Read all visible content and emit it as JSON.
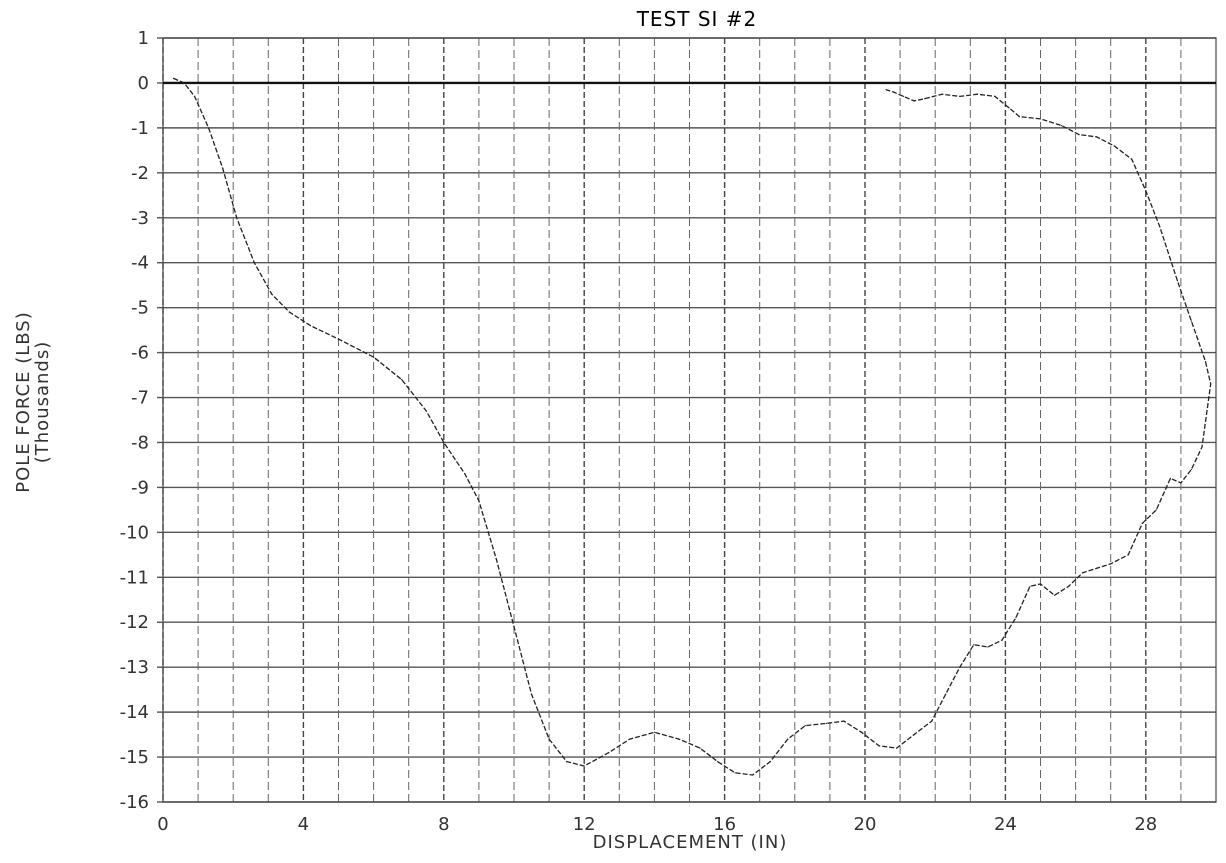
{
  "chart_data": {
    "type": "line",
    "title": "TEST SI #2",
    "xlabel": "DISPLACEMENT (IN)",
    "ylabel": "POLE FORCE (LBS)",
    "ylabel_sub": "(Thousands)",
    "xlim": [
      0,
      30
    ],
    "ylim": [
      -16,
      1
    ],
    "grid": true,
    "x_ticks": [
      0,
      4,
      8,
      12,
      16,
      20,
      24,
      28
    ],
    "x_tick_labels": [
      "0",
      "4",
      "8",
      "12",
      "16",
      "20",
      "24",
      "28"
    ],
    "y_ticks": [
      1,
      0,
      -1,
      -2,
      -3,
      -4,
      -5,
      -6,
      -7,
      -8,
      -9,
      -10,
      -11,
      -12,
      -13,
      -14,
      -15,
      -16
    ],
    "y_tick_labels": [
      "1",
      "0",
      "-1",
      "-2",
      "-3",
      "-4",
      "-5",
      "-6",
      "-7",
      "-8",
      "-9",
      "-10",
      "-11",
      "-12",
      "-13",
      "-14",
      "-15",
      "-16"
    ],
    "series": [
      {
        "style": "dashed",
        "color": "#222222",
        "points": [
          [
            0.3,
            0.1
          ],
          [
            0.6,
            0.0
          ],
          [
            0.9,
            -0.3
          ],
          [
            1.3,
            -1.0
          ],
          [
            1.7,
            -1.9
          ],
          [
            2.1,
            -3.0
          ],
          [
            2.6,
            -4.0
          ],
          [
            3.1,
            -4.7
          ],
          [
            3.6,
            -5.1
          ],
          [
            4.2,
            -5.4
          ],
          [
            5.0,
            -5.7
          ],
          [
            6.0,
            -6.1
          ],
          [
            6.8,
            -6.6
          ],
          [
            7.5,
            -7.3
          ],
          [
            8.0,
            -8.0
          ],
          [
            8.6,
            -8.7
          ],
          [
            9.0,
            -9.3
          ],
          [
            9.5,
            -10.6
          ],
          [
            10.0,
            -12.1
          ],
          [
            10.5,
            -13.6
          ],
          [
            11.0,
            -14.6
          ],
          [
            11.5,
            -15.1
          ],
          [
            12.0,
            -15.2
          ],
          [
            12.7,
            -14.9
          ],
          [
            13.3,
            -14.6
          ],
          [
            14.0,
            -14.45
          ],
          [
            14.7,
            -14.6
          ],
          [
            15.3,
            -14.8
          ],
          [
            15.8,
            -15.1
          ],
          [
            16.3,
            -15.35
          ],
          [
            16.8,
            -15.4
          ],
          [
            17.3,
            -15.1
          ],
          [
            17.8,
            -14.6
          ],
          [
            18.3,
            -14.3
          ],
          [
            18.9,
            -14.25
          ],
          [
            19.4,
            -14.2
          ],
          [
            19.9,
            -14.45
          ],
          [
            20.4,
            -14.75
          ],
          [
            20.9,
            -14.8
          ],
          [
            21.4,
            -14.5
          ],
          [
            21.9,
            -14.2
          ],
          [
            22.3,
            -13.6
          ],
          [
            22.7,
            -13.0
          ],
          [
            23.1,
            -12.5
          ],
          [
            23.5,
            -12.55
          ],
          [
            23.9,
            -12.4
          ],
          [
            24.3,
            -11.9
          ],
          [
            24.7,
            -11.2
          ],
          [
            25.0,
            -11.15
          ],
          [
            25.4,
            -11.4
          ],
          [
            25.8,
            -11.2
          ],
          [
            26.2,
            -10.9
          ],
          [
            26.6,
            -10.8
          ],
          [
            27.0,
            -10.7
          ],
          [
            27.5,
            -10.5
          ],
          [
            27.9,
            -9.8
          ],
          [
            28.3,
            -9.5
          ],
          [
            28.7,
            -8.8
          ],
          [
            29.0,
            -8.9
          ],
          [
            29.3,
            -8.6
          ],
          [
            29.6,
            -8.1
          ],
          [
            29.85,
            -6.7
          ],
          [
            29.7,
            -6.2
          ],
          [
            29.3,
            -5.3
          ],
          [
            28.9,
            -4.4
          ],
          [
            28.4,
            -3.2
          ],
          [
            28.0,
            -2.4
          ],
          [
            27.6,
            -1.7
          ],
          [
            27.1,
            -1.4
          ],
          [
            26.6,
            -1.2
          ],
          [
            26.1,
            -1.15
          ],
          [
            25.6,
            -0.95
          ],
          [
            25.0,
            -0.8
          ],
          [
            24.4,
            -0.75
          ],
          [
            24.1,
            -0.55
          ],
          [
            23.7,
            -0.3
          ],
          [
            23.2,
            -0.25
          ],
          [
            22.7,
            -0.3
          ],
          [
            22.2,
            -0.25
          ],
          [
            21.7,
            -0.35
          ],
          [
            21.4,
            -0.4
          ],
          [
            21.1,
            -0.3
          ],
          [
            20.8,
            -0.2
          ],
          [
            20.6,
            -0.15
          ]
        ]
      }
    ]
  }
}
